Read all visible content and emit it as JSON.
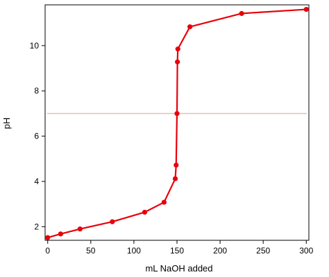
{
  "chart_data": {
    "type": "line",
    "title": "",
    "xlabel": "mL NaOH added",
    "ylabel": "pH",
    "xlim": [
      -3,
      303
    ],
    "ylim": [
      1.4,
      11.8
    ],
    "xticks": [
      0,
      50,
      100,
      150,
      200,
      250,
      300
    ],
    "yticks": [
      2,
      4,
      6,
      8,
      10
    ],
    "grid": false,
    "legend": "none",
    "series": [
      {
        "color": "#e8000b",
        "marker": "circle",
        "x": [
          0,
          15,
          37.5,
          75,
          112.5,
          135,
          148,
          149,
          150,
          150.5,
          151,
          165,
          225,
          300
        ],
        "y": [
          1.52,
          1.68,
          1.9,
          2.22,
          2.64,
          3.08,
          4.12,
          4.72,
          7.0,
          9.28,
          9.85,
          10.83,
          11.42,
          11.6
        ]
      }
    ],
    "reference_lines": [
      {
        "orientation": "horizontal",
        "value": 7.0,
        "color": "#f2b8b8"
      }
    ]
  }
}
